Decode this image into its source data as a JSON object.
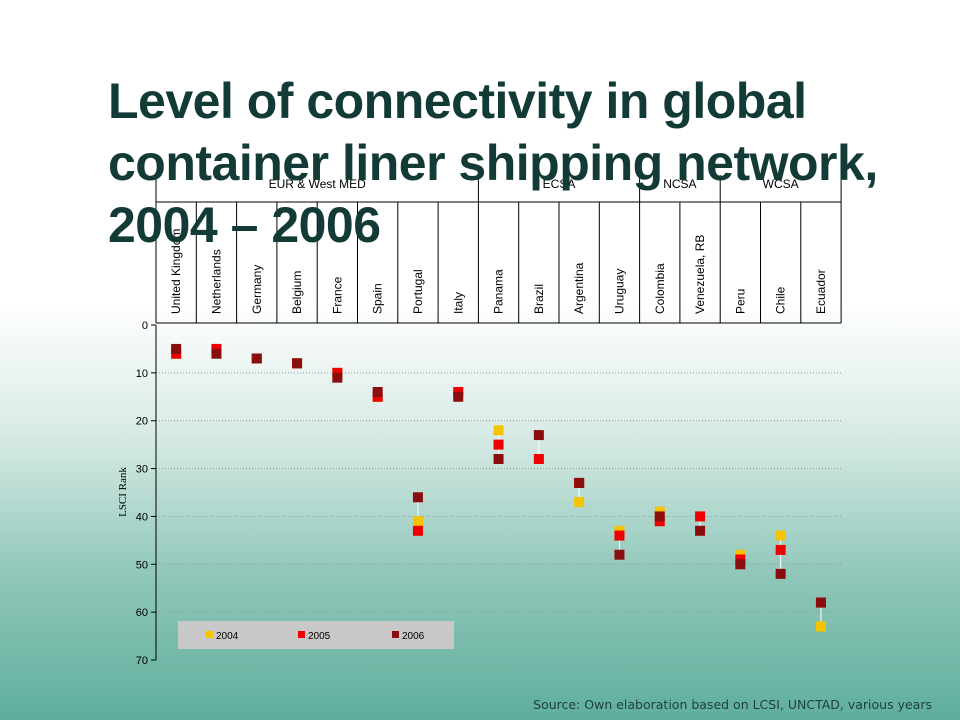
{
  "title": "Level of connectivity in global container liner shipping network, 2004 – 2006",
  "source": "Source: Own elaboration based on LCSI, UNCTAD, various years",
  "chart_data": {
    "type": "scatter",
    "ylabel": "LSCI Rank",
    "ylim": [
      0,
      70
    ],
    "yticks": [
      0,
      10,
      20,
      30,
      40,
      50,
      60,
      70
    ],
    "y_inverted": true,
    "grid": "horizontal dotted",
    "legend_placement": "bottom-left",
    "regions": [
      {
        "label": "EUR & West MED",
        "count": 8
      },
      {
        "label": "ECSA",
        "count": 4
      },
      {
        "label": "NCSA",
        "count": 2
      },
      {
        "label": "WCSA",
        "count": 3
      }
    ],
    "categories": [
      "United Kingdom",
      "Netherlands",
      "Germany",
      "Belgium",
      "France",
      "Spain",
      "Portugal",
      "Italy",
      "Panama",
      "Brazil",
      "Argentina",
      "Uruguay",
      "Colombia",
      "Venezuela, RB",
      "Peru",
      "Chile",
      "Ecuador"
    ],
    "series": [
      {
        "name": "2004",
        "color": "#f5c400",
        "values": [
          6,
          5,
          7,
          8,
          10,
          15,
          41,
          14,
          22,
          28,
          37,
          43,
          39,
          40,
          48,
          44,
          63
        ]
      },
      {
        "name": "2005",
        "color": "#ee0000",
        "values": [
          6,
          5,
          7,
          8,
          10,
          15,
          43,
          14,
          25,
          28,
          33,
          44,
          41,
          40,
          49,
          47,
          58
        ]
      },
      {
        "name": "2006",
        "color": "#8b0e0e",
        "values": [
          5,
          6,
          7,
          8,
          11,
          14,
          36,
          15,
          28,
          23,
          33,
          48,
          40,
          43,
          50,
          52,
          58
        ]
      }
    ]
  }
}
